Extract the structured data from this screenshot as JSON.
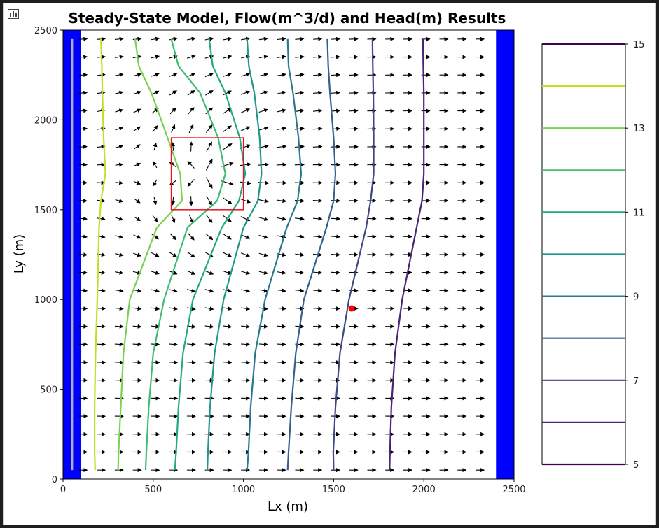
{
  "chart_data": {
    "type": "contour",
    "title": "Steady-State Model, Flow(m^3/d) and Head(m) Results",
    "xlabel": "Lx (m)",
    "ylabel": "Ly (m)",
    "xlim": [
      0,
      2500
    ],
    "ylim": [
      0,
      2500
    ],
    "xticks": [
      0,
      500,
      1000,
      1500,
      2000,
      2500
    ],
    "yticks": [
      0,
      500,
      1000,
      1500,
      2000,
      2500
    ],
    "boundaries": [
      {
        "x0": 0,
        "x1": 100,
        "color": "#0000ff"
      },
      {
        "x0": 2400,
        "x1": 2500,
        "color": "#0000ff"
      }
    ],
    "well_line": {
      "x": 50,
      "y0": 50,
      "y1": 2450,
      "color": "#b0b0b0"
    },
    "rectangle": {
      "x0": 600,
      "x1": 1000,
      "y0": 1500,
      "y1": 1900,
      "color": "#e8141c"
    },
    "observation_point": {
      "x": 1600,
      "y": 950,
      "color": "#ff0000"
    },
    "quiver": {
      "x_start": 110,
      "x_step": 100,
      "nx": 23,
      "y_start": 50,
      "y_step": 100,
      "ny": 25,
      "anomaly_center": [
        800,
        1700
      ],
      "anomaly_radius": 200
    },
    "contours": [
      {
        "level": 14,
        "color": "#c2df23",
        "x": [
          210,
          215,
          218,
          225,
          235,
          210,
          200,
          190,
          180,
          175,
          175,
          178
        ]
      },
      {
        "level": 13,
        "color": "#7ad151",
        "x": [
          400,
          420,
          490,
          580,
          650,
          660,
          520,
          370,
          335,
          320,
          308,
          305
        ]
      },
      {
        "level": 12,
        "color": "#3fbc73",
        "x": [
          600,
          640,
          760,
          860,
          900,
          855,
          690,
          560,
          500,
          475,
          462,
          458
        ]
      },
      {
        "level": 11,
        "color": "#22a884",
        "x": [
          810,
          830,
          900,
          980,
          1010,
          975,
          880,
          720,
          665,
          640,
          627,
          620
        ]
      },
      {
        "level": 10,
        "color": "#1f988b",
        "x": [
          1020,
          1030,
          1060,
          1090,
          1100,
          1080,
          1000,
          890,
          840,
          815,
          803,
          800
        ]
      },
      {
        "level": 9,
        "color": "#2a788e",
        "x": [
          1245,
          1250,
          1275,
          1305,
          1320,
          1300,
          1240,
          1120,
          1065,
          1040,
          1028,
          1020
        ]
      },
      {
        "level": 8,
        "color": "#355f8d",
        "x": [
          1465,
          1470,
          1480,
          1500,
          1510,
          1500,
          1460,
          1335,
          1290,
          1265,
          1250,
          1245
        ]
      },
      {
        "level": 7,
        "color": "#404688",
        "x": [
          1715,
          1717,
          1720,
          1722,
          1722,
          1705,
          1680,
          1585,
          1535,
          1510,
          1498,
          1500
        ]
      },
      {
        "level": 6,
        "color": "#482475",
        "x": [
          1995,
          1997,
          2000,
          2000,
          2000,
          1990,
          1960,
          1880,
          1840,
          1820,
          1812,
          1810
        ]
      }
    ],
    "contour_y": [
      2450,
      2300,
      2150,
      1900,
      1700,
      1550,
      1400,
      1000,
      700,
      400,
      150,
      50
    ],
    "colorbar": {
      "min": 5,
      "max": 15,
      "ticks": [
        5,
        7,
        9,
        11,
        13,
        15
      ],
      "levels": [
        {
          "level": 6,
          "color": "#482475"
        },
        {
          "level": 7,
          "color": "#414487"
        },
        {
          "level": 8,
          "color": "#355f8d"
        },
        {
          "level": 9,
          "color": "#2a788e"
        },
        {
          "level": 10,
          "color": "#21918c"
        },
        {
          "level": 11,
          "color": "#22a884"
        },
        {
          "level": 12,
          "color": "#44bf70"
        },
        {
          "level": 13,
          "color": "#7ad151"
        },
        {
          "level": 14,
          "color": "#bddf26"
        },
        {
          "level": 15,
          "color": "#440154"
        }
      ]
    }
  }
}
